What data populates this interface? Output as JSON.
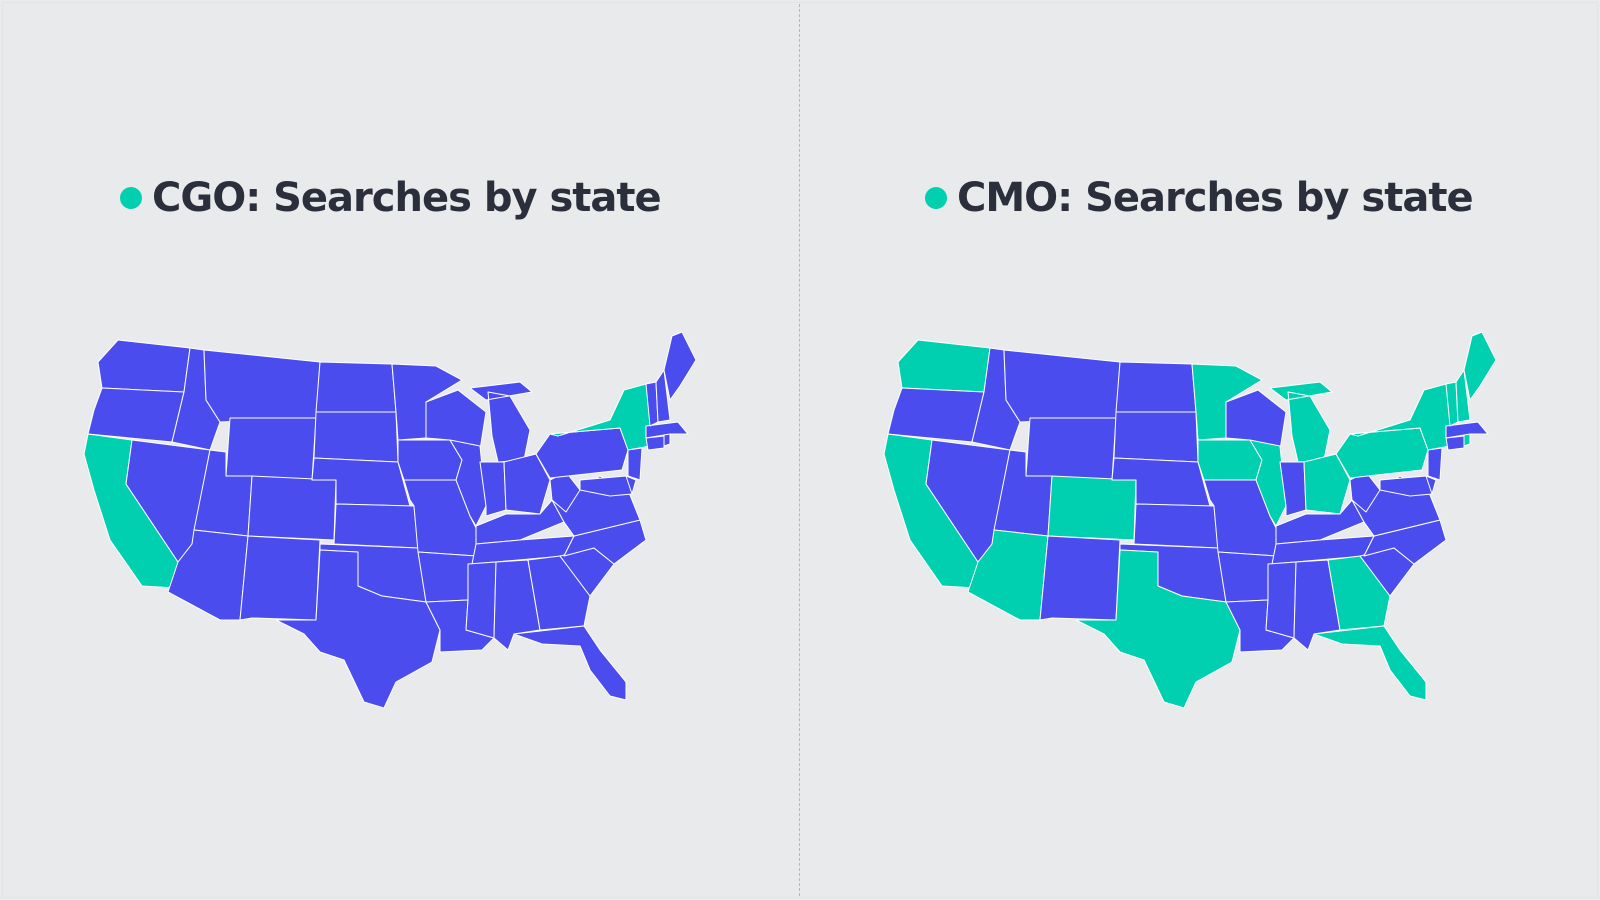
{
  "colors": {
    "background": "#e9eaec",
    "highlight": "#00d0b0",
    "base": "#4b4cee",
    "title": "#2a2f3b"
  },
  "maps": [
    {
      "title": "CGO: Searches by state",
      "highlighted_states": [
        "CA",
        "NY"
      ]
    },
    {
      "title": "CMO: Searches by state",
      "highlighted_states": [
        "WA",
        "CA",
        "AZ",
        "CO",
        "TX",
        "MN",
        "IA",
        "IL",
        "MI",
        "OH",
        "PA",
        "NY",
        "VT",
        "NH",
        "ME",
        "GA",
        "FL",
        "RI"
      ]
    }
  ]
}
